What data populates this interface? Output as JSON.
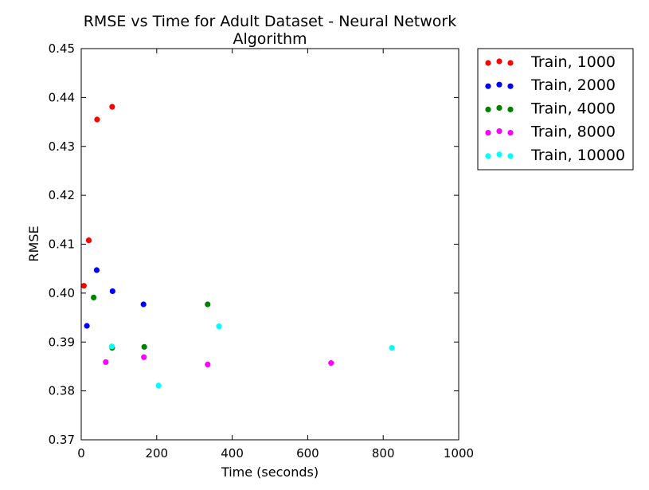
{
  "chart_data": {
    "type": "scatter",
    "title": "RMSE vs Time for Adult Dataset - Neural Network\nAlgorithm",
    "xlabel": "Time (seconds)",
    "ylabel": "RMSE",
    "xlim": [
      0,
      1000
    ],
    "ylim": [
      0.37,
      0.45
    ],
    "xticks": [
      "0",
      "200",
      "400",
      "600",
      "800",
      "1000"
    ],
    "yticks": [
      "0.37",
      "0.38",
      "0.39",
      "0.40",
      "0.41",
      "0.42",
      "0.43",
      "0.44",
      "0.45"
    ],
    "grid": false,
    "legend_position": "outside-top-right",
    "series": [
      {
        "name": "Train, 1000",
        "color": "#ff0000",
        "points": [
          [
            7,
            0.4015
          ],
          [
            20,
            0.4108
          ],
          [
            42,
            0.4355
          ],
          [
            82,
            0.4381
          ]
        ]
      },
      {
        "name": "Train, 2000",
        "color": "#0000ff",
        "points": [
          [
            15,
            0.3933
          ],
          [
            41,
            0.4047
          ],
          [
            83,
            0.4004
          ],
          [
            165,
            0.3977
          ]
        ]
      },
      {
        "name": "Train, 4000",
        "color": "#008000",
        "points": [
          [
            33,
            0.3991
          ],
          [
            82,
            0.3888
          ],
          [
            167,
            0.389
          ],
          [
            335,
            0.3977
          ]
        ]
      },
      {
        "name": "Train, 8000",
        "color": "#ff00ff",
        "points": [
          [
            65,
            0.3859
          ],
          [
            166,
            0.3869
          ],
          [
            335,
            0.3854
          ],
          [
            662,
            0.3857
          ]
        ]
      },
      {
        "name": "Train, 10000",
        "color": "#00ffff",
        "points": [
          [
            81,
            0.3891
          ],
          [
            205,
            0.3811
          ],
          [
            365,
            0.3932
          ],
          [
            823,
            0.3888
          ]
        ]
      }
    ]
  }
}
